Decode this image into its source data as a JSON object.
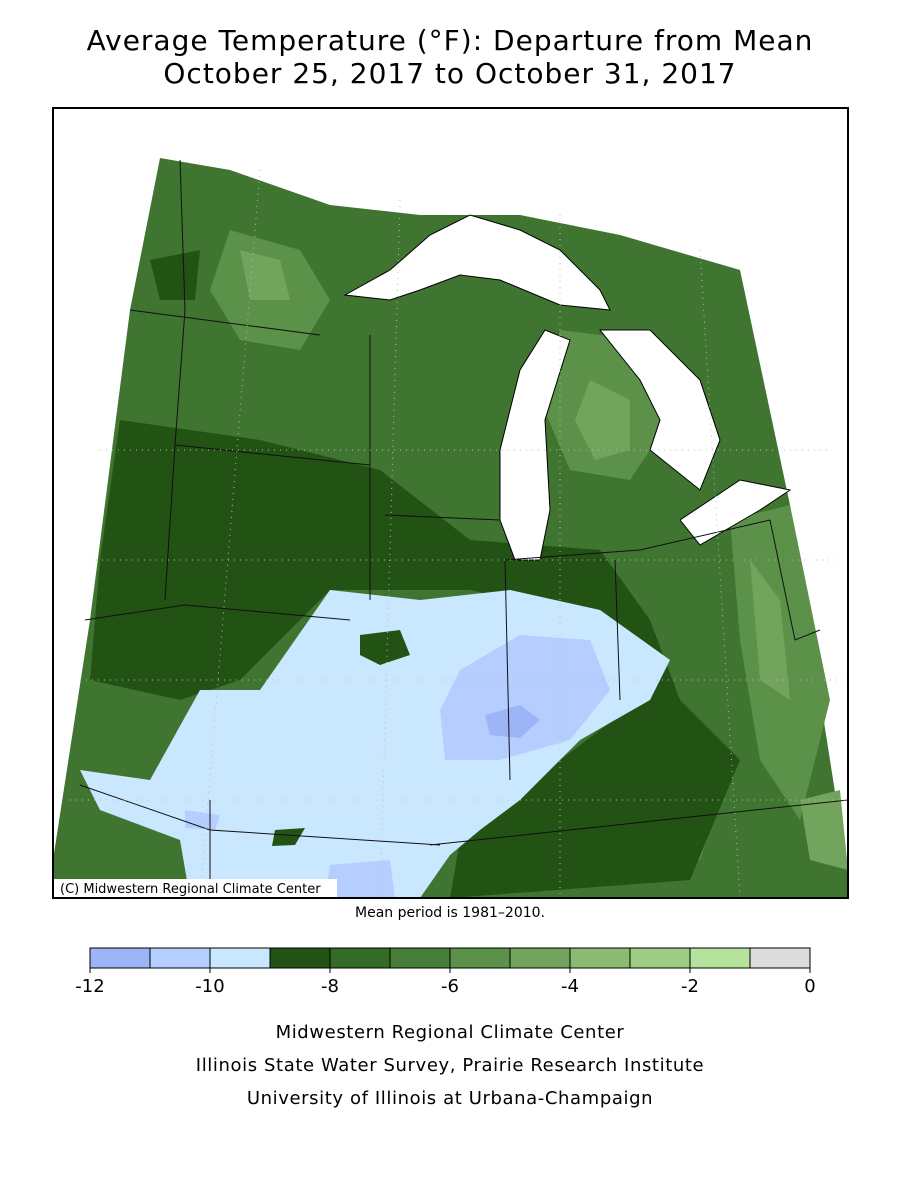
{
  "title": [
    "Average Temperature (°F): Departure from Mean",
    "October 25, 2017 to October 31, 2017"
  ],
  "credit": "(C) Midwestern Regional Climate Center",
  "note": "Mean period is 1981–2010.",
  "legend": {
    "bins": [
      -12,
      -11,
      -10,
      -9,
      -8,
      -7,
      -6,
      -5,
      -4,
      -3,
      -2,
      -1,
      0
    ],
    "colors": [
      "#9bb5f7",
      "#b5ceff",
      "#c9e8ff",
      "#235215",
      "#346b27",
      "#477e37",
      "#5b9148",
      "#73a45e",
      "#8abb70",
      "#9fcd85",
      "#b5e39b",
      "#dcdcdc"
    ],
    "ticks": [
      -12,
      -10,
      -8,
      -6,
      -4,
      -2,
      0
    ]
  },
  "footer": [
    "Midwestern Regional Climate Center",
    "Illinois State Water Survey, Prairie Research Institute",
    "University of Illinois at Urbana-Champaign"
  ]
}
